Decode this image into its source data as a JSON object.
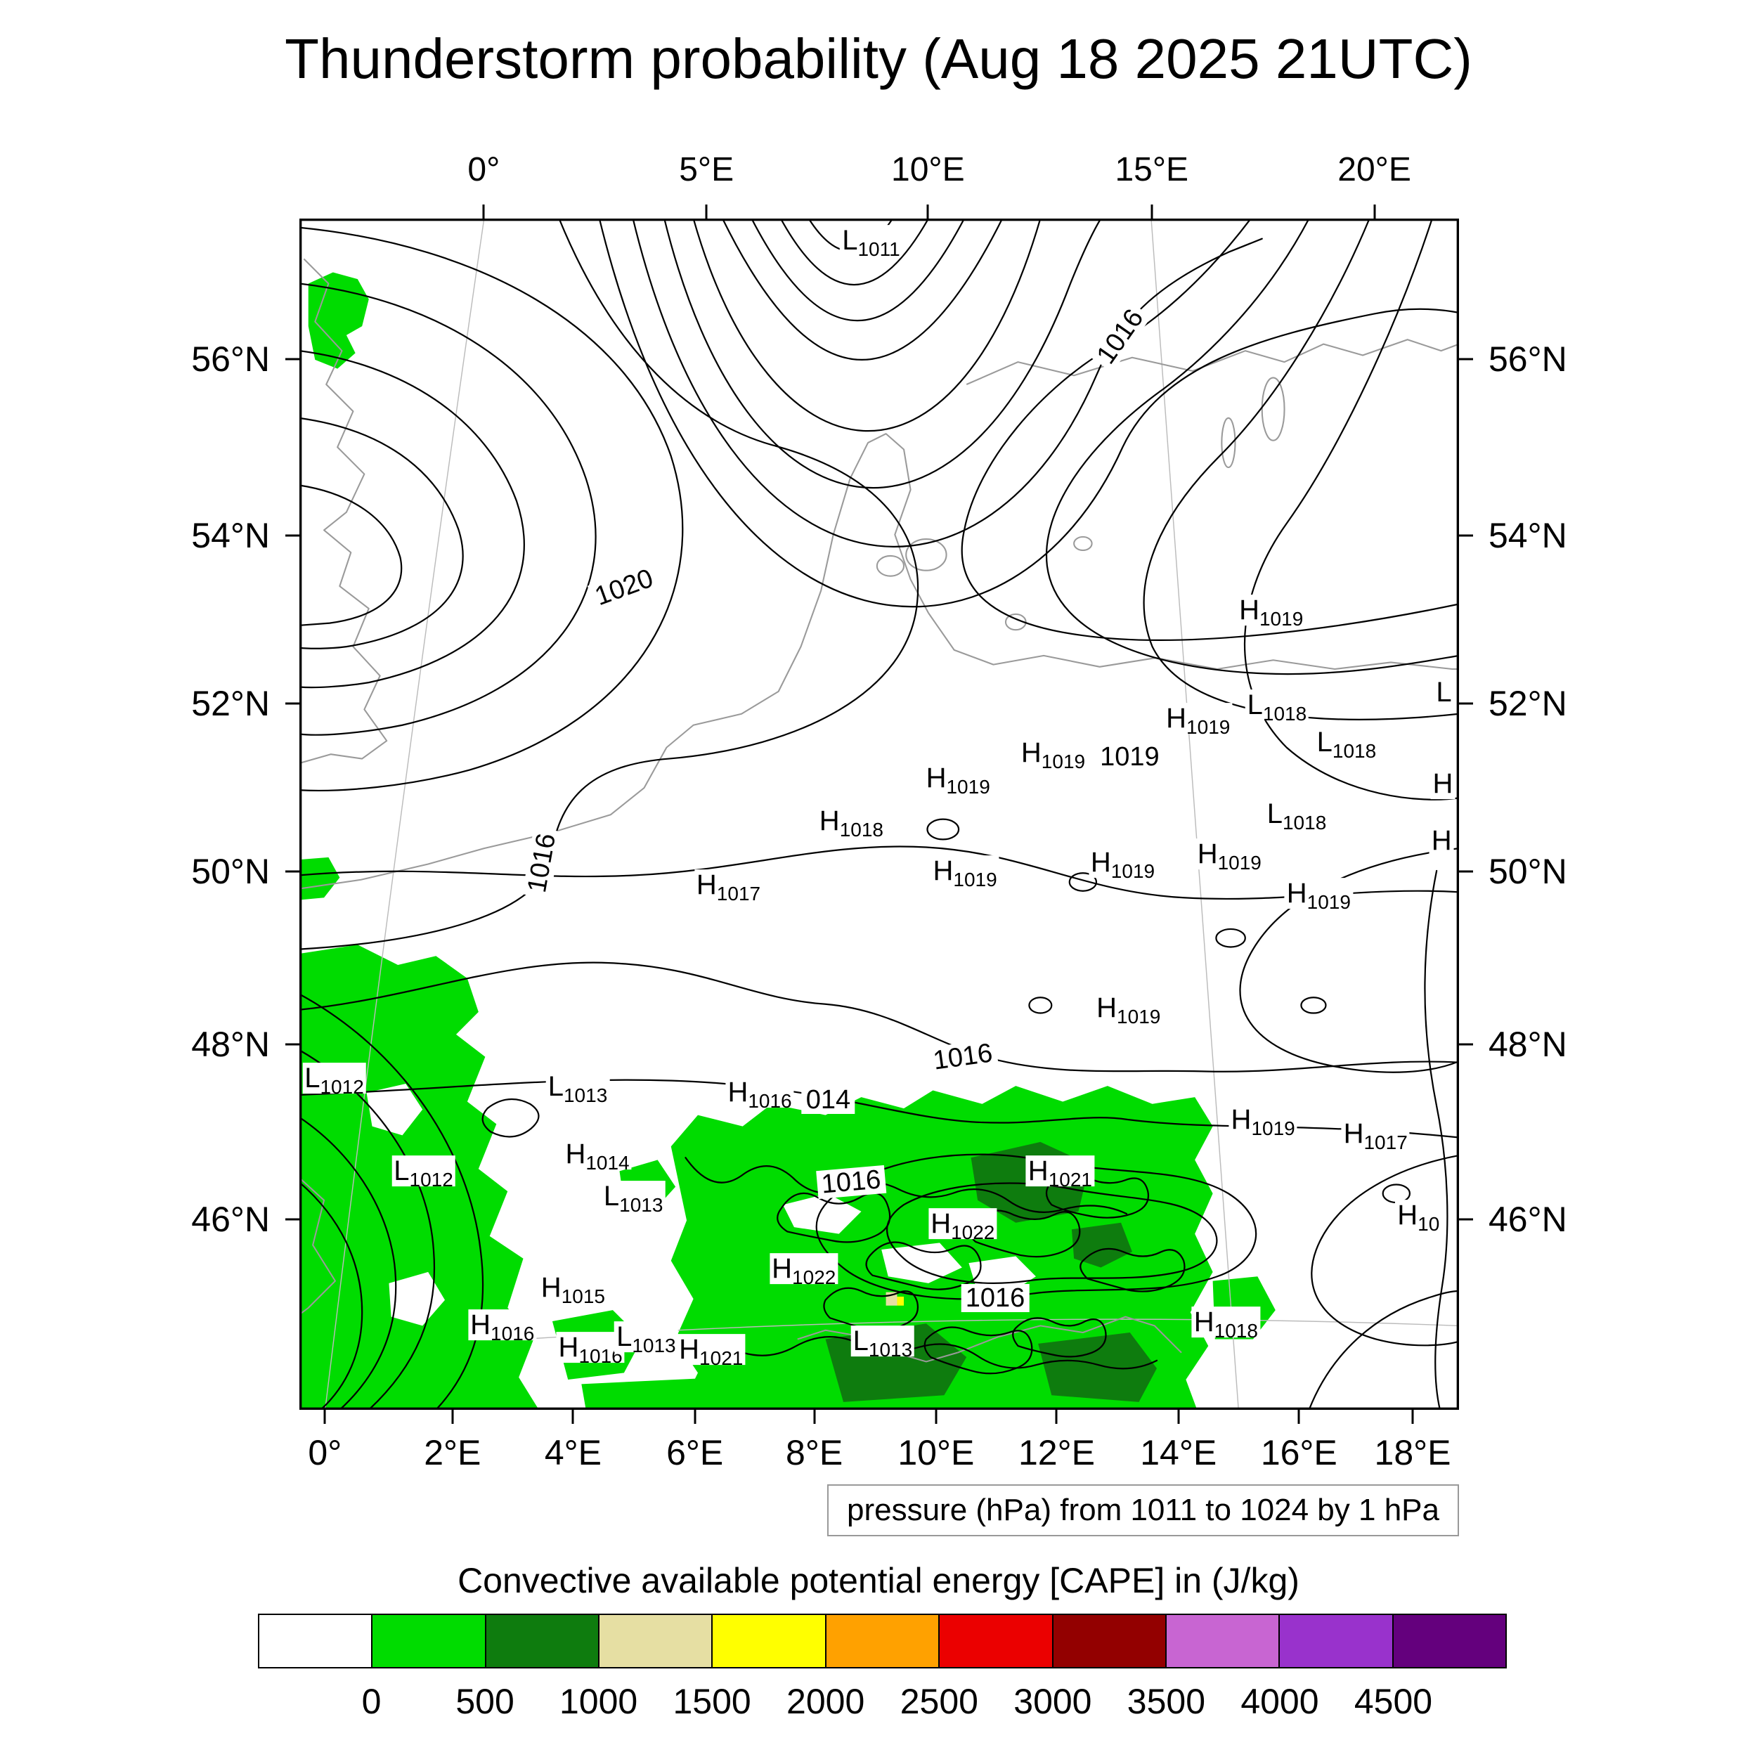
{
  "title": "Thunderstorm probability (Aug 18 2025 21UTC)",
  "caption": "pressure (hPa) from 1011 to 1024 by 1 hPa",
  "legend": {
    "title": "Convective available potential energy [CAPE] in (J/kg)"
  },
  "map": {
    "axis": {
      "top": [
        {
          "label": "0°",
          "x": 15.9
        },
        {
          "label": "5°E",
          "x": 35.1
        },
        {
          "label": "10°E",
          "x": 54.2
        },
        {
          "label": "15°E",
          "x": 73.5
        },
        {
          "label": "20°E",
          "x": 92.7
        }
      ],
      "bottom": [
        {
          "label": "0°",
          "x": 2.2
        },
        {
          "label": "2°E",
          "x": 13.2
        },
        {
          "label": "4°E",
          "x": 23.6
        },
        {
          "label": "6°E",
          "x": 34.1
        },
        {
          "label": "8°E",
          "x": 44.4
        },
        {
          "label": "10°E",
          "x": 54.9
        },
        {
          "label": "12°E",
          "x": 65.3
        },
        {
          "label": "14°E",
          "x": 75.8
        },
        {
          "label": "16°E",
          "x": 86.2
        },
        {
          "label": "18°E",
          "x": 96.0
        }
      ],
      "left": [
        {
          "label": "56°N",
          "y": 11.8
        },
        {
          "label": "54°N",
          "y": 26.6
        },
        {
          "label": "52°N",
          "y": 40.7
        },
        {
          "label": "50°N",
          "y": 54.8
        },
        {
          "label": "48°N",
          "y": 69.3
        },
        {
          "label": "46°N",
          "y": 84.0
        }
      ],
      "right": [
        {
          "label": "56°N",
          "y": 11.8
        },
        {
          "label": "54°N",
          "y": 26.6
        },
        {
          "label": "52°N",
          "y": 40.7
        },
        {
          "label": "50°N",
          "y": 54.8
        },
        {
          "label": "48°N",
          "y": 69.3
        },
        {
          "label": "46°N",
          "y": 84.0
        }
      ]
    }
  },
  "chart_data": {
    "type": "contour-map",
    "title": "Thunderstorm probability (Aug 18 2025 21UTC)",
    "x_axis": {
      "top_ticks": [
        "0°",
        "5°E",
        "10°E",
        "15°E",
        "20°E"
      ],
      "bottom_ticks": [
        "0°",
        "2°E",
        "4°E",
        "6°E",
        "8°E",
        "10°E",
        "12°E",
        "14°E",
        "16°E",
        "18°E"
      ]
    },
    "y_axis": {
      "ticks": [
        "56°N",
        "54°N",
        "52°N",
        "50°N",
        "48°N",
        "46°N"
      ]
    },
    "contours": {
      "variable": "pressure",
      "units": "hPa",
      "min": 1011,
      "max": 1024,
      "interval": 1,
      "labeled_values": [
        1011,
        1014,
        1016,
        1019,
        1020
      ]
    },
    "shading": {
      "variable": "Convective available potential energy [CAPE]",
      "units": "J/kg",
      "levels": [
        0,
        500,
        1000,
        1500,
        2000,
        2500,
        3000,
        3500,
        4000,
        4500
      ],
      "segments": [
        {
          "color": "#FFFFFF"
        },
        {
          "color": "#00DC00"
        },
        {
          "color": "#0E7C0E"
        },
        {
          "color": "#E6DFA3"
        },
        {
          "color": "#FFFF00"
        },
        {
          "color": "#FFA100"
        },
        {
          "color": "#EB0000"
        },
        {
          "color": "#930000"
        },
        {
          "color": "#C865D2"
        },
        {
          "color": "#9932CC"
        },
        {
          "color": "#64007D"
        }
      ],
      "tick_labels": [
        {
          "text": "0",
          "x": 9.09
        },
        {
          "text": "500",
          "x": 18.18
        },
        {
          "text": "1000",
          "x": 27.27
        },
        {
          "text": "1500",
          "x": 36.36
        },
        {
          "text": "2000",
          "x": 45.45
        },
        {
          "text": "2500",
          "x": 54.55
        },
        {
          "text": "3000",
          "x": 63.64
        },
        {
          "text": "3500",
          "x": 72.73
        },
        {
          "text": "4000",
          "x": 81.82
        },
        {
          "text": "4500",
          "x": 90.91
        }
      ]
    },
    "pressure_centers": [
      {
        "letter": "L",
        "value": "1011",
        "x": 49.3,
        "y": 1.9
      },
      {
        "letter": "H",
        "value": "1019",
        "x": 83.8,
        "y": 32.9
      },
      {
        "letter": "H",
        "value": "1019",
        "x": 77.5,
        "y": 42.0
      },
      {
        "letter": "L",
        "value": "1018",
        "x": 84.3,
        "y": 40.9
      },
      {
        "letter": "L",
        "value": "1018",
        "x": 90.3,
        "y": 44.0
      },
      {
        "letter": "L",
        "value": "",
        "x": 98.7,
        "y": 39.8
      },
      {
        "letter": "H",
        "value": "1019",
        "x": 65.0,
        "y": 44.9
      },
      {
        "letter": "H",
        "value": "1019",
        "x": 56.8,
        "y": 47.0
      },
      {
        "letter": "H",
        "value": "",
        "x": 98.6,
        "y": 47.5
      },
      {
        "letter": "H",
        "value": "1018",
        "x": 47.6,
        "y": 50.6
      },
      {
        "letter": "L",
        "value": "1018",
        "x": 86.0,
        "y": 50.0
      },
      {
        "letter": "H",
        "value": "",
        "x": 98.5,
        "y": 52.3
      },
      {
        "letter": "H",
        "value": "1019",
        "x": 57.4,
        "y": 54.8
      },
      {
        "letter": "H",
        "value": "1019",
        "x": 71.0,
        "y": 54.1
      },
      {
        "letter": "H",
        "value": "1019",
        "x": 80.2,
        "y": 53.4
      },
      {
        "letter": "H",
        "value": "1019",
        "x": 87.9,
        "y": 56.7
      },
      {
        "letter": "H",
        "value": "1017",
        "x": 37.0,
        "y": 56.0
      },
      {
        "letter": "H",
        "value": "1019",
        "x": 71.5,
        "y": 66.3
      },
      {
        "letter": "L",
        "value": "1012",
        "x": 3.0,
        "y": 72.2
      },
      {
        "letter": "L",
        "value": "1013",
        "x": 24.0,
        "y": 72.9
      },
      {
        "letter": "H",
        "value": "1016",
        "x": 39.7,
        "y": 73.4
      },
      {
        "letter": "L",
        "value": "1012",
        "x": 10.7,
        "y": 80.0
      },
      {
        "letter": "H",
        "value": "1014",
        "x": 25.7,
        "y": 78.6
      },
      {
        "letter": "L",
        "value": "1013",
        "x": 28.8,
        "y": 82.1
      },
      {
        "letter": "H",
        "value": "1021",
        "x": 65.6,
        "y": 80.0
      },
      {
        "letter": "H",
        "value": "1022",
        "x": 57.2,
        "y": 84.4
      },
      {
        "letter": "H",
        "value": "1019",
        "x": 83.1,
        "y": 75.7
      },
      {
        "letter": "H",
        "value": "1017",
        "x": 92.8,
        "y": 76.9
      },
      {
        "letter": "H",
        "value": "10",
        "x": 96.5,
        "y": 83.7
      },
      {
        "letter": "H",
        "value": "1015",
        "x": 23.6,
        "y": 89.8
      },
      {
        "letter": "H",
        "value": "1022",
        "x": 43.5,
        "y": 88.2
      },
      {
        "letter": "H",
        "value": "1016",
        "x": 17.5,
        "y": 92.9
      },
      {
        "letter": "H",
        "value": "1016",
        "x": 25.1,
        "y": 94.8
      },
      {
        "letter": "L",
        "value": "1013",
        "x": 29.9,
        "y": 93.9
      },
      {
        "letter": "H",
        "value": "1021",
        "x": 35.5,
        "y": 95.0
      },
      {
        "letter": "L",
        "value": "1013",
        "x": 50.3,
        "y": 94.3
      },
      {
        "letter": "H",
        "value": "1018",
        "x": 79.9,
        "y": 92.7
      }
    ],
    "contour_labels": [
      {
        "text": "1016",
        "x": 70.8,
        "y": 9.9,
        "rot": -55
      },
      {
        "text": "1020",
        "x": 28.0,
        "y": 31.0,
        "rot": -20
      },
      {
        "text": "1016",
        "x": 20.9,
        "y": 54.1,
        "rot": -80
      },
      {
        "text": "1019",
        "x": 71.6,
        "y": 45.2,
        "rot": 0
      },
      {
        "text": "1016",
        "x": 57.2,
        "y": 70.4,
        "rot": -8
      },
      {
        "text": "014",
        "x": 45.6,
        "y": 74.0,
        "rot": 0
      },
      {
        "text": "1016",
        "x": 47.6,
        "y": 80.9,
        "rot": -5
      },
      {
        "text": "1016",
        "x": 60.0,
        "y": 90.6,
        "rot": 0
      }
    ]
  }
}
